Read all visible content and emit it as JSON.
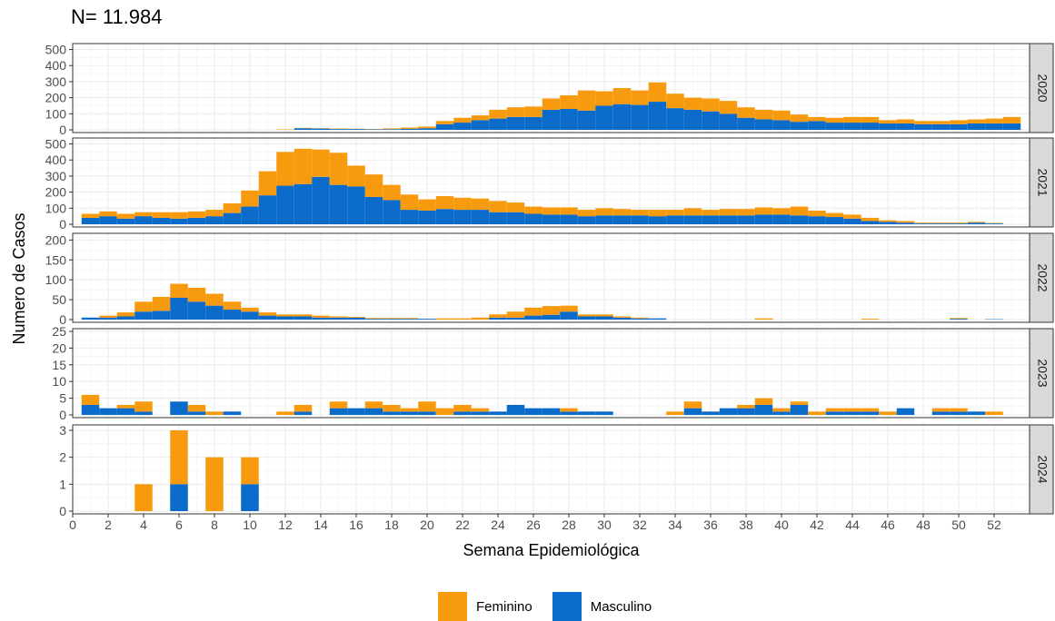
{
  "title": "N= 11.984",
  "chart_data": {
    "type": "bar",
    "stacked": true,
    "xlabel": "Semana Epidemiológica",
    "ylabel": "Numero de Casos",
    "x_ticks": [
      0,
      2,
      4,
      6,
      8,
      10,
      12,
      14,
      16,
      18,
      20,
      22,
      24,
      26,
      28,
      30,
      32,
      34,
      36,
      38,
      40,
      42,
      44,
      46,
      48,
      50,
      52
    ],
    "xlim": [
      0,
      54
    ],
    "grid": true,
    "legend_position": "bottom",
    "series": [
      {
        "name": "Feminino",
        "color": "#F79A0E"
      },
      {
        "name": "Masculino",
        "color": "#0A6BCB"
      }
    ],
    "panels": [
      {
        "label": "2020",
        "ylim": [
          0,
          520
        ],
        "yticks": [
          0,
          100,
          200,
          300,
          400,
          500
        ],
        "weeks": [
          12,
          13,
          14,
          15,
          16,
          17,
          18,
          19,
          20,
          21,
          22,
          23,
          24,
          25,
          26,
          27,
          28,
          29,
          30,
          31,
          32,
          33,
          34,
          35,
          36,
          37,
          38,
          39,
          40,
          41,
          42,
          43,
          44,
          45,
          46,
          47,
          48,
          49,
          50,
          51,
          52,
          53
        ],
        "masculino": [
          0,
          10,
          8,
          5,
          5,
          3,
          4,
          6,
          10,
          35,
          45,
          60,
          70,
          80,
          80,
          125,
          130,
          120,
          150,
          160,
          155,
          175,
          135,
          125,
          115,
          100,
          75,
          65,
          60,
          50,
          55,
          45,
          45,
          45,
          40,
          40,
          35,
          35,
          35,
          40,
          40,
          40
        ],
        "feminino": [
          3,
          2,
          2,
          3,
          2,
          2,
          5,
          8,
          10,
          20,
          30,
          30,
          55,
          60,
          65,
          70,
          85,
          125,
          90,
          100,
          90,
          120,
          90,
          75,
          80,
          80,
          65,
          60,
          60,
          45,
          25,
          30,
          35,
          35,
          20,
          25,
          20,
          20,
          25,
          25,
          30,
          40
        ]
      },
      {
        "label": "2021",
        "ylim": [
          0,
          520
        ],
        "yticks": [
          0,
          100,
          200,
          300,
          400,
          500
        ],
        "weeks": [
          1,
          2,
          3,
          4,
          5,
          6,
          7,
          8,
          9,
          10,
          11,
          12,
          13,
          14,
          15,
          16,
          17,
          18,
          19,
          20,
          21,
          22,
          23,
          24,
          25,
          26,
          27,
          28,
          29,
          30,
          31,
          32,
          33,
          34,
          35,
          36,
          37,
          38,
          39,
          40,
          41,
          42,
          43,
          44,
          45,
          46,
          47,
          48,
          49,
          50,
          51,
          52
        ],
        "masculino": [
          40,
          50,
          35,
          50,
          40,
          35,
          40,
          50,
          70,
          110,
          180,
          240,
          250,
          295,
          245,
          235,
          170,
          150,
          90,
          85,
          95,
          90,
          90,
          75,
          75,
          65,
          60,
          60,
          50,
          55,
          55,
          55,
          50,
          55,
          55,
          55,
          55,
          55,
          60,
          60,
          55,
          50,
          45,
          35,
          20,
          15,
          10,
          5,
          5,
          5,
          10,
          5
        ],
        "feminino": [
          25,
          30,
          30,
          25,
          35,
          40,
          40,
          40,
          60,
          100,
          150,
          210,
          220,
          170,
          200,
          130,
          140,
          95,
          95,
          70,
          80,
          75,
          70,
          70,
          60,
          45,
          45,
          45,
          40,
          45,
          40,
          35,
          40,
          35,
          45,
          35,
          40,
          40,
          45,
          40,
          55,
          35,
          25,
          25,
          20,
          10,
          10,
          5,
          5,
          5,
          5,
          3
        ]
      },
      {
        "label": "2022",
        "ylim": [
          0,
          210
        ],
        "yticks": [
          0,
          50,
          100,
          150,
          200
        ],
        "weeks": [
          1,
          2,
          3,
          4,
          5,
          6,
          7,
          8,
          9,
          10,
          11,
          12,
          13,
          14,
          15,
          16,
          17,
          18,
          19,
          20,
          21,
          22,
          23,
          24,
          25,
          26,
          27,
          28,
          29,
          30,
          31,
          32,
          33,
          34,
          35,
          36,
          37,
          38,
          39,
          40,
          41,
          42,
          43,
          44,
          45,
          46,
          47,
          48,
          49,
          50,
          51,
          52
        ],
        "masculino": [
          5,
          5,
          8,
          20,
          22,
          55,
          45,
          35,
          25,
          20,
          10,
          8,
          8,
          5,
          5,
          5,
          2,
          2,
          2,
          2,
          0,
          0,
          0,
          5,
          5,
          10,
          12,
          20,
          8,
          8,
          5,
          3,
          3,
          0,
          0,
          0,
          0,
          0,
          0,
          0,
          0,
          0,
          0,
          0,
          0,
          0,
          0,
          0,
          0,
          2,
          0,
          1
        ],
        "feminino": [
          0,
          5,
          10,
          25,
          35,
          35,
          35,
          30,
          20,
          10,
          8,
          5,
          5,
          5,
          3,
          2,
          2,
          2,
          2,
          0,
          3,
          3,
          5,
          8,
          15,
          20,
          22,
          15,
          5,
          5,
          3,
          2,
          0,
          0,
          0,
          0,
          0,
          0,
          3,
          0,
          0,
          0,
          0,
          0,
          2,
          0,
          0,
          0,
          0,
          2,
          0,
          0
        ]
      },
      {
        "label": "2023",
        "ylim": [
          0,
          25
        ],
        "yticks": [
          0,
          5,
          10,
          15,
          20,
          25
        ],
        "weeks": [
          1,
          2,
          3,
          4,
          5,
          6,
          7,
          8,
          9,
          10,
          11,
          12,
          13,
          14,
          15,
          16,
          17,
          18,
          19,
          20,
          21,
          22,
          23,
          24,
          25,
          26,
          27,
          28,
          29,
          30,
          31,
          32,
          33,
          34,
          35,
          36,
          37,
          38,
          39,
          40,
          41,
          42,
          43,
          44,
          45,
          46,
          47,
          48,
          49,
          50,
          51,
          52
        ],
        "masculino": [
          3,
          2,
          2,
          1,
          0,
          4,
          1,
          0,
          1,
          0,
          0,
          0,
          1,
          0,
          2,
          2,
          2,
          1,
          1,
          1,
          0,
          1,
          1,
          1,
          3,
          2,
          2,
          1,
          1,
          1,
          0,
          0,
          0,
          0,
          2,
          1,
          2,
          2,
          3,
          1,
          3,
          0,
          1,
          1,
          1,
          0,
          2,
          0,
          1,
          1,
          1,
          0
        ],
        "feminino": [
          3,
          0,
          1,
          3,
          0,
          0,
          2,
          1,
          0,
          0,
          0,
          1,
          2,
          0,
          2,
          0,
          2,
          2,
          1,
          3,
          2,
          2,
          1,
          0,
          0,
          0,
          0,
          1,
          0,
          0,
          0,
          0,
          0,
          1,
          2,
          0,
          0,
          1,
          2,
          1,
          1,
          1,
          1,
          1,
          1,
          1,
          0,
          0,
          1,
          1,
          0,
          1
        ]
      },
      {
        "label": "2024",
        "ylim": [
          0,
          3.1
        ],
        "yticks": [
          0,
          1,
          2,
          3
        ],
        "weeks": [
          4,
          6,
          8,
          10
        ],
        "masculino": [
          0,
          1,
          0,
          1
        ],
        "feminino": [
          1,
          2,
          2,
          1
        ]
      }
    ]
  }
}
